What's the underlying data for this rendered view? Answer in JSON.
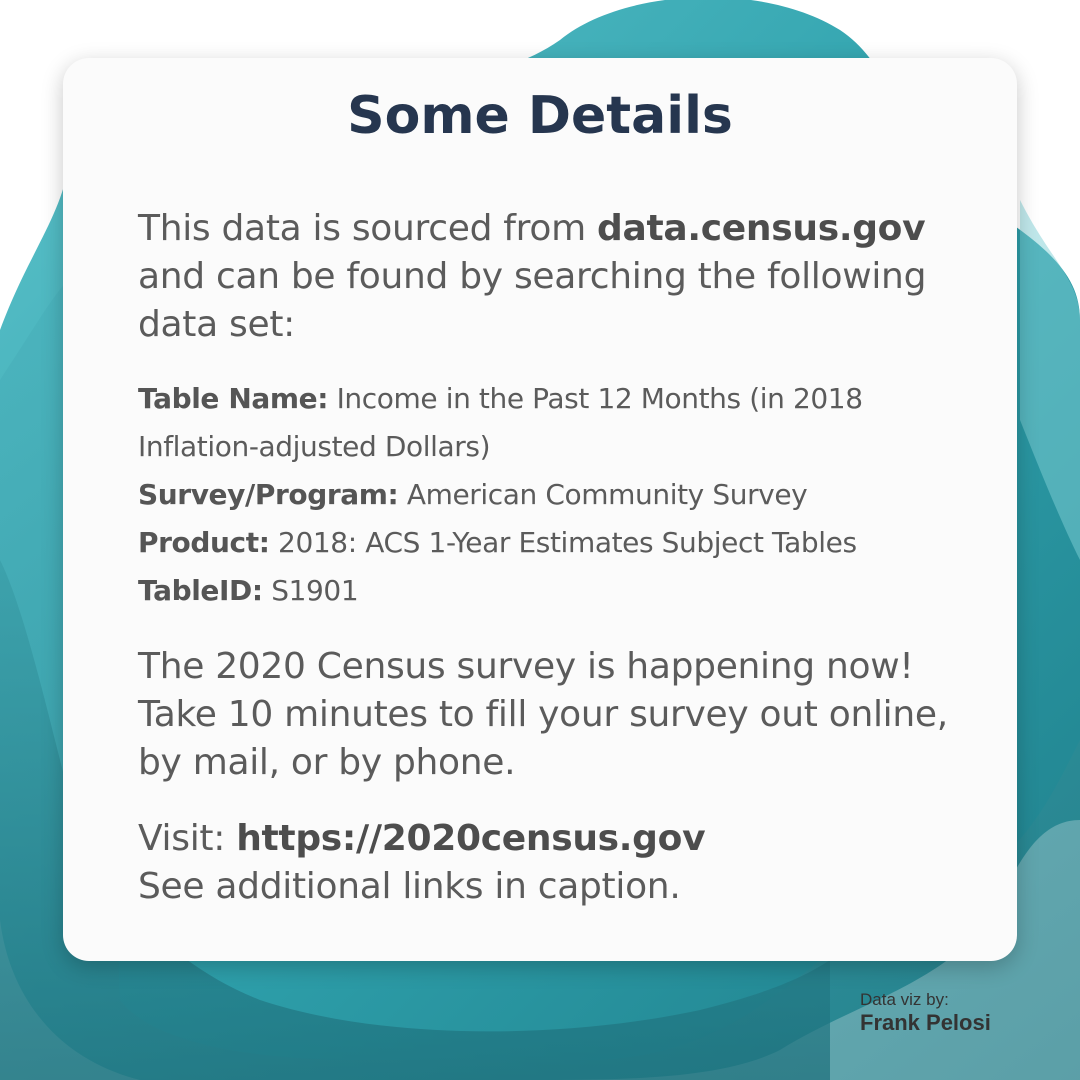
{
  "title": "Some Details",
  "intro": {
    "text_before": "This data is sourced from ",
    "source": "data.census.gov",
    "text_after": " and can be found by searching the following data set:"
  },
  "details": [
    {
      "key": "Table Name:",
      "value": "Income in the Past 12 Months (in 2018 Inflation-adjusted Dollars)"
    },
    {
      "key": "Survey/Program:",
      "value": "American Community Survey"
    },
    {
      "key": "Product:",
      "value": "2018: ACS 1-Year Estimates Subject Tables"
    },
    {
      "key": "TableID:",
      "value": "S1901"
    }
  ],
  "census_note": "The 2020 Census survey is happening now! Take 10 minutes to fill your survey out online, by mail, or by phone.",
  "visit": {
    "label": "Visit: ",
    "url": "https://2020census.gov",
    "line2": "See additional links in caption."
  },
  "credit": {
    "label": "Data viz by:",
    "name": "Frank Pelosi"
  },
  "colors": {
    "title": "#26364f",
    "teal_dark": "#2a8a94",
    "teal_light": "#5bc0c9",
    "card": "#fbfbfb"
  }
}
